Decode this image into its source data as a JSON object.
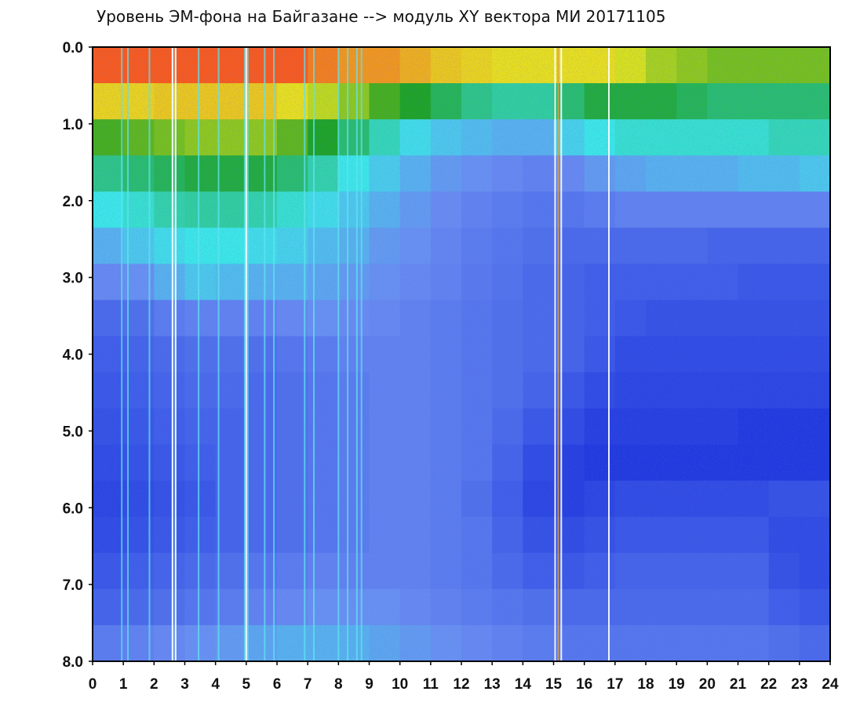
{
  "chart_data": {
    "type": "heatmap",
    "title": "Уровень ЭМ-фона на Байгазане   -->  модуль XY вектора МИ   20171105",
    "xlabel": "",
    "ylabel": "",
    "xlim": [
      0,
      24
    ],
    "ylim": [
      0,
      8
    ],
    "y_inverted": true,
    "grid": false,
    "x_ticks": [
      "0",
      "1",
      "2",
      "3",
      "4",
      "5",
      "6",
      "7",
      "8",
      "9",
      "10",
      "11",
      "12",
      "13",
      "14",
      "15",
      "16",
      "17",
      "18",
      "19",
      "20",
      "21",
      "22",
      "23",
      "24"
    ],
    "y_ticks": [
      "0.0",
      "1.0",
      "2.0",
      "3.0",
      "4.0",
      "5.0",
      "6.0",
      "7.0",
      "8.0"
    ],
    "y_tick_values": [
      0,
      1,
      2,
      3,
      4,
      5,
      6,
      7,
      8
    ],
    "colormap": [
      "#1428d8",
      "#3c5ae6",
      "#6a8cf0",
      "#3ce6e6",
      "#1ea01e",
      "#e6e61e",
      "#ff1e1e"
    ],
    "intensity_grid_note": "relative intensity by hour (columns 0..23) and level band (rows 0.0..8.0 step 0.5), 0 = low (blue), 1 = high (red)",
    "intensity_grid": [
      [
        0.95,
        0.95,
        0.95,
        0.95,
        0.95,
        0.95,
        0.95,
        0.92,
        0.9,
        0.9,
        0.88,
        0.86,
        0.85,
        0.84,
        0.84,
        0.84,
        0.84,
        0.82,
        0.78,
        0.76,
        0.74,
        0.74,
        0.74,
        0.74
      ],
      [
        0.85,
        0.85,
        0.86,
        0.86,
        0.86,
        0.86,
        0.84,
        0.8,
        0.76,
        0.7,
        0.66,
        0.62,
        0.58,
        0.56,
        0.56,
        0.6,
        0.64,
        0.64,
        0.64,
        0.62,
        0.6,
        0.6,
        0.6,
        0.6
      ],
      [
        0.7,
        0.72,
        0.74,
        0.76,
        0.76,
        0.76,
        0.72,
        0.66,
        0.6,
        0.54,
        0.48,
        0.44,
        0.42,
        0.4,
        0.4,
        0.46,
        0.5,
        0.52,
        0.52,
        0.52,
        0.52,
        0.52,
        0.54,
        0.54
      ],
      [
        0.58,
        0.6,
        0.62,
        0.64,
        0.64,
        0.64,
        0.6,
        0.55,
        0.5,
        0.45,
        0.4,
        0.36,
        0.34,
        0.32,
        0.3,
        0.32,
        0.36,
        0.38,
        0.4,
        0.4,
        0.4,
        0.42,
        0.42,
        0.44
      ],
      [
        0.5,
        0.52,
        0.55,
        0.56,
        0.56,
        0.55,
        0.52,
        0.48,
        0.44,
        0.4,
        0.36,
        0.33,
        0.3,
        0.28,
        0.26,
        0.26,
        0.28,
        0.3,
        0.3,
        0.3,
        0.3,
        0.3,
        0.3,
        0.3
      ],
      [
        0.4,
        0.44,
        0.48,
        0.5,
        0.5,
        0.48,
        0.46,
        0.42,
        0.4,
        0.36,
        0.34,
        0.31,
        0.28,
        0.26,
        0.24,
        0.22,
        0.22,
        0.22,
        0.22,
        0.22,
        0.2,
        0.2,
        0.2,
        0.2
      ],
      [
        0.32,
        0.34,
        0.4,
        0.44,
        0.42,
        0.4,
        0.4,
        0.38,
        0.36,
        0.34,
        0.32,
        0.3,
        0.27,
        0.25,
        0.22,
        0.2,
        0.18,
        0.18,
        0.18,
        0.18,
        0.18,
        0.16,
        0.16,
        0.16
      ],
      [
        0.22,
        0.24,
        0.28,
        0.3,
        0.3,
        0.3,
        0.32,
        0.34,
        0.33,
        0.32,
        0.3,
        0.28,
        0.26,
        0.24,
        0.22,
        0.2,
        0.18,
        0.16,
        0.14,
        0.14,
        0.14,
        0.14,
        0.14,
        0.14
      ],
      [
        0.18,
        0.2,
        0.22,
        0.24,
        0.24,
        0.24,
        0.26,
        0.28,
        0.3,
        0.3,
        0.3,
        0.28,
        0.26,
        0.24,
        0.22,
        0.2,
        0.16,
        0.12,
        0.12,
        0.12,
        0.12,
        0.12,
        0.12,
        0.12
      ],
      [
        0.16,
        0.18,
        0.2,
        0.22,
        0.22,
        0.22,
        0.24,
        0.26,
        0.28,
        0.3,
        0.3,
        0.28,
        0.26,
        0.24,
        0.2,
        0.16,
        0.12,
        0.1,
        0.1,
        0.1,
        0.1,
        0.1,
        0.1,
        0.1
      ],
      [
        0.14,
        0.16,
        0.18,
        0.2,
        0.2,
        0.22,
        0.24,
        0.26,
        0.28,
        0.3,
        0.3,
        0.28,
        0.26,
        0.22,
        0.16,
        0.12,
        0.08,
        0.08,
        0.08,
        0.08,
        0.08,
        0.06,
        0.06,
        0.06
      ],
      [
        0.12,
        0.14,
        0.16,
        0.18,
        0.2,
        0.22,
        0.24,
        0.26,
        0.28,
        0.3,
        0.3,
        0.28,
        0.26,
        0.2,
        0.12,
        0.08,
        0.06,
        0.06,
        0.06,
        0.06,
        0.06,
        0.06,
        0.06,
        0.06
      ],
      [
        0.1,
        0.12,
        0.14,
        0.16,
        0.2,
        0.22,
        0.24,
        0.26,
        0.28,
        0.3,
        0.3,
        0.28,
        0.24,
        0.18,
        0.1,
        0.08,
        0.1,
        0.12,
        0.12,
        0.12,
        0.12,
        0.12,
        0.14,
        0.14
      ],
      [
        0.12,
        0.14,
        0.16,
        0.18,
        0.2,
        0.22,
        0.24,
        0.26,
        0.28,
        0.3,
        0.3,
        0.28,
        0.26,
        0.2,
        0.14,
        0.12,
        0.14,
        0.16,
        0.16,
        0.16,
        0.16,
        0.16,
        0.12,
        0.12
      ],
      [
        0.16,
        0.18,
        0.2,
        0.22,
        0.24,
        0.26,
        0.28,
        0.3,
        0.3,
        0.3,
        0.3,
        0.28,
        0.26,
        0.22,
        0.18,
        0.16,
        0.18,
        0.2,
        0.2,
        0.2,
        0.2,
        0.2,
        0.14,
        0.12
      ],
      [
        0.2,
        0.22,
        0.24,
        0.26,
        0.28,
        0.3,
        0.32,
        0.34,
        0.34,
        0.34,
        0.32,
        0.3,
        0.28,
        0.26,
        0.24,
        0.22,
        0.22,
        0.22,
        0.22,
        0.22,
        0.22,
        0.22,
        0.18,
        0.16
      ],
      [
        0.28,
        0.3,
        0.32,
        0.34,
        0.36,
        0.38,
        0.4,
        0.4,
        0.4,
        0.38,
        0.36,
        0.34,
        0.32,
        0.3,
        0.28,
        0.26,
        0.26,
        0.26,
        0.26,
        0.26,
        0.26,
        0.26,
        0.24,
        0.22
      ]
    ],
    "bright_columns_x": [
      0.95,
      1.15,
      1.85,
      2.6,
      2.7,
      3.45,
      4.1,
      4.95,
      5.05,
      5.6,
      5.9,
      6.9,
      7.2,
      8.0,
      8.3,
      8.6,
      8.75
    ],
    "white_columns_x": [
      2.6,
      2.7,
      5.0,
      15.05,
      15.25,
      16.8
    ],
    "orange_column_x": [
      15.15
    ]
  }
}
